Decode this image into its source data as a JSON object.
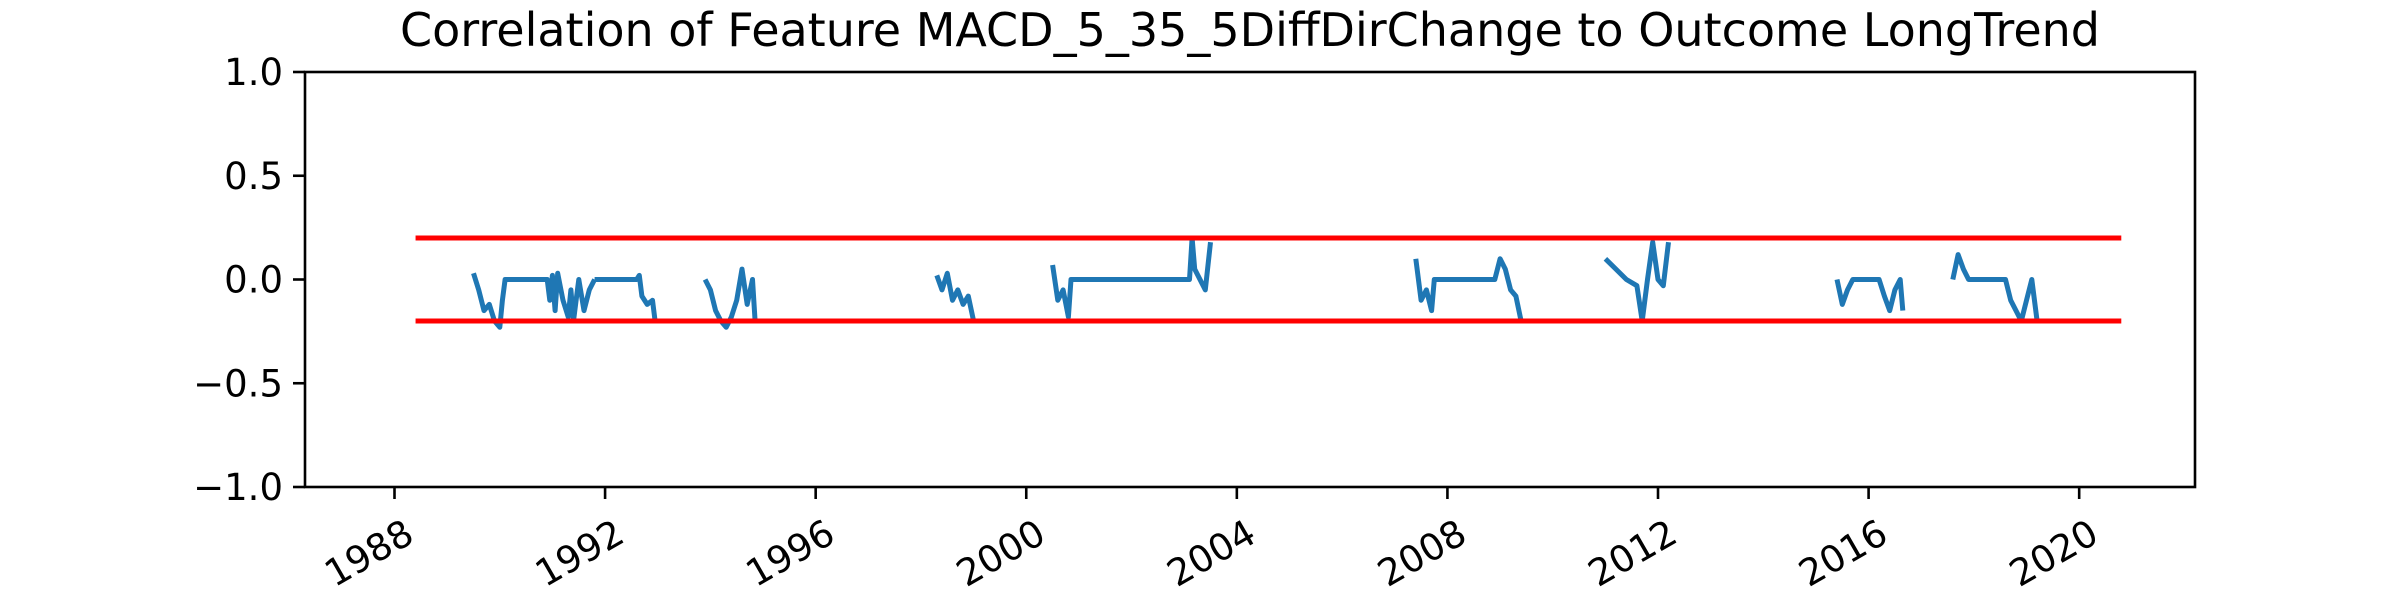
{
  "chart_data": {
    "type": "line",
    "title": "Correlation of Feature MACD_5_35_5DiffDirChange to Outcome LongTrend",
    "xlabel": "",
    "ylabel": "",
    "x_is_date": true,
    "xlim": [
      1986.3,
      2022.2
    ],
    "ylim": [
      -1.0,
      1.0
    ],
    "yticks": [
      -1.0,
      -0.5,
      0.0,
      0.5,
      1.0
    ],
    "ytick_labels": [
      "−1.0",
      "−0.5",
      "0.0",
      "0.5",
      "1.0"
    ],
    "xticks": [
      1988,
      1992,
      1996,
      2000,
      2004,
      2008,
      2012,
      2016,
      2020
    ],
    "xtick_labels": [
      "1988",
      "1992",
      "1996",
      "2000",
      "2004",
      "2008",
      "2012",
      "2016",
      "2020"
    ],
    "grid": false,
    "legend": "none",
    "colors": {
      "series": "#1f77b4",
      "threshold": "#ff0000",
      "axes": "#000000"
    },
    "thresholds": [
      {
        "y": 0.2,
        "x": [
          1988.4,
          2020.8
        ]
      },
      {
        "y": -0.2,
        "x": [
          1988.4,
          2020.8
        ]
      }
    ],
    "series": [
      {
        "values": [
          [
            1989.5,
            0.03
          ],
          [
            1989.6,
            -0.05
          ],
          [
            1989.7,
            -0.15
          ],
          [
            1989.8,
            -0.12
          ],
          [
            1989.9,
            -0.2
          ],
          [
            1990.0,
            -0.23
          ],
          [
            1990.05,
            -0.1
          ],
          [
            1990.1,
            0.0
          ],
          [
            1990.9,
            0.0
          ],
          [
            1990.95,
            -0.1
          ],
          [
            1991.0,
            0.02
          ],
          [
            1991.05,
            -0.15
          ],
          [
            1991.1,
            0.03
          ],
          [
            1991.2,
            -0.1
          ],
          [
            1991.3,
            -0.18
          ],
          [
            1991.35,
            -0.05
          ],
          [
            1991.4,
            -0.2
          ],
          [
            1991.45,
            -0.1
          ],
          [
            1991.5,
            0.0
          ],
          [
            1991.6,
            -0.15
          ],
          [
            1991.7,
            -0.05
          ],
          [
            1991.8,
            0.0
          ],
          [
            2020.0,
            null
          ]
        ]
      },
      {
        "values": [
          [
            1991.8,
            0.0
          ],
          [
            1992.6,
            0.0
          ],
          [
            1992.65,
            0.02
          ],
          [
            1992.7,
            -0.08
          ],
          [
            1992.8,
            -0.12
          ],
          [
            1992.9,
            -0.1
          ],
          [
            1992.95,
            -0.2
          ]
        ]
      },
      {
        "values": [
          [
            1993.9,
            0.0
          ],
          [
            1994.0,
            -0.05
          ],
          [
            1994.1,
            -0.15
          ],
          [
            1994.2,
            -0.2
          ],
          [
            1994.3,
            -0.23
          ],
          [
            1994.4,
            -0.18
          ],
          [
            1994.5,
            -0.1
          ],
          [
            1994.6,
            0.05
          ],
          [
            1994.7,
            -0.12
          ],
          [
            1994.8,
            0.0
          ],
          [
            1994.85,
            -0.2
          ]
        ]
      },
      {
        "values": [
          [
            1998.3,
            0.02
          ],
          [
            1998.4,
            -0.05
          ],
          [
            1998.5,
            0.03
          ],
          [
            1998.6,
            -0.1
          ],
          [
            1998.7,
            -0.05
          ],
          [
            1998.8,
            -0.12
          ],
          [
            1998.9,
            -0.08
          ],
          [
            1999.0,
            -0.2
          ]
        ]
      },
      {
        "values": [
          [
            2000.5,
            0.07
          ],
          [
            2000.6,
            -0.1
          ],
          [
            2000.7,
            -0.05
          ],
          [
            2000.8,
            -0.18
          ],
          [
            2000.85,
            0.0
          ],
          [
            2003.1,
            0.0
          ],
          [
            2003.15,
            0.2
          ],
          [
            2003.2,
            0.05
          ],
          [
            2003.3,
            0.0
          ],
          [
            2003.4,
            -0.05
          ],
          [
            2003.5,
            0.18
          ]
        ]
      },
      {
        "values": [
          [
            2007.4,
            0.1
          ],
          [
            2007.5,
            -0.1
          ],
          [
            2007.6,
            -0.05
          ],
          [
            2007.7,
            -0.15
          ],
          [
            2007.75,
            0.0
          ],
          [
            2008.9,
            0.0
          ],
          [
            2009.0,
            0.1
          ],
          [
            2009.1,
            0.05
          ],
          [
            2009.2,
            -0.05
          ],
          [
            2009.3,
            -0.08
          ],
          [
            2009.4,
            -0.2
          ]
        ]
      },
      {
        "values": [
          [
            2011.0,
            0.1
          ],
          [
            2011.2,
            0.05
          ],
          [
            2011.4,
            0.0
          ],
          [
            2011.6,
            -0.03
          ],
          [
            2011.7,
            -0.2
          ],
          [
            2011.8,
            0.0
          ],
          [
            2011.9,
            0.18
          ],
          [
            2012.0,
            0.0
          ],
          [
            2012.1,
            -0.03
          ],
          [
            2012.2,
            0.18
          ]
        ]
      },
      {
        "values": [
          [
            2015.4,
            0.0
          ],
          [
            2015.5,
            -0.12
          ],
          [
            2015.6,
            -0.05
          ],
          [
            2015.7,
            0.0
          ],
          [
            2016.2,
            0.0
          ],
          [
            2016.3,
            -0.08
          ],
          [
            2016.4,
            -0.15
          ],
          [
            2016.5,
            -0.05
          ],
          [
            2016.6,
            0.0
          ],
          [
            2016.65,
            -0.15
          ]
        ]
      },
      {
        "values": [
          [
            2017.6,
            0.0
          ],
          [
            2017.7,
            0.12
          ],
          [
            2017.8,
            0.05
          ],
          [
            2017.9,
            0.0
          ],
          [
            2018.6,
            0.0
          ],
          [
            2018.7,
            -0.1
          ],
          [
            2018.8,
            -0.15
          ],
          [
            2018.9,
            -0.2
          ],
          [
            2019.0,
            -0.1
          ],
          [
            2019.1,
            0.0
          ],
          [
            2019.2,
            -0.2
          ]
        ]
      }
    ]
  }
}
